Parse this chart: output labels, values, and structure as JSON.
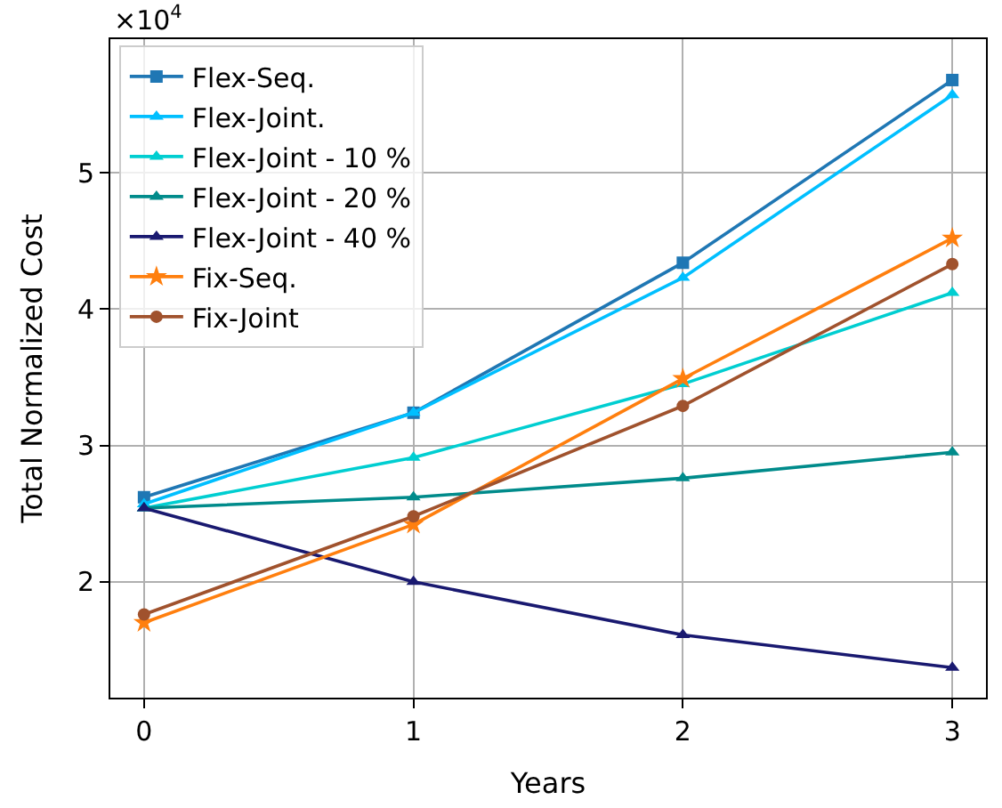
{
  "chart_data": {
    "type": "line",
    "xlabel": "Years",
    "ylabel": "Total Normalized Cost",
    "x": [
      0,
      1,
      2,
      3
    ],
    "xlim": [
      -0.125,
      3.125
    ],
    "xticks": [
      0,
      1,
      2,
      3
    ],
    "ylim": [
      1.15,
      5.98
    ],
    "yticks": [
      2,
      3,
      4,
      5
    ],
    "annotations": [
      "×10$^{4}$"
    ],
    "grid": true,
    "legend": "top left",
    "series": [
      {
        "name": "Flex-Seq.",
        "color": "#1f77b4",
        "marker": "square",
        "values": [
          2.62,
          3.24,
          4.34,
          5.68
        ]
      },
      {
        "name": "Flex-Joint.",
        "color": "#00bfff",
        "marker": "triangle",
        "values": [
          2.57,
          3.24,
          4.23,
          5.57
        ]
      },
      {
        "name": "Flex-Joint - 10 %",
        "color": "#00ced1",
        "marker": "triangle",
        "values": [
          2.54,
          2.91,
          3.45,
          4.12
        ]
      },
      {
        "name": "Flex-Joint - 20 %",
        "color": "#008b8b",
        "marker": "triangle",
        "values": [
          2.54,
          2.62,
          2.76,
          2.95
        ]
      },
      {
        "name": "Flex-Joint - 40 %",
        "color": "#191970",
        "marker": "triangle",
        "values": [
          2.54,
          2.0,
          1.61,
          1.37
        ]
      },
      {
        "name": "Fix-Seq.",
        "color": "#ff7f0e",
        "marker": "star",
        "values": [
          1.7,
          2.42,
          3.49,
          4.52
        ]
      },
      {
        "name": "Fix-Joint",
        "color": "#a0522d",
        "marker": "circle",
        "values": [
          1.76,
          2.48,
          3.29,
          4.33
        ]
      }
    ]
  }
}
